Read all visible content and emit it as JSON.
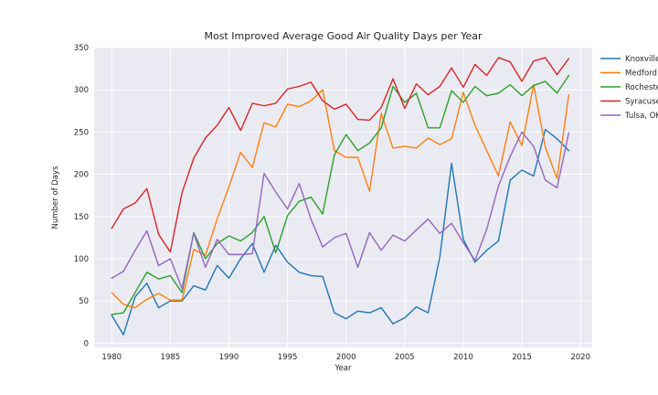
{
  "chart_data": {
    "type": "line",
    "title": "Most Improved Average Good Air Quality Days per Year",
    "xlabel": "Year",
    "ylabel": "Number of Days",
    "xlim": [
      1978.5,
      2021.0
    ],
    "ylim": [
      -5,
      350
    ],
    "xticks": [
      1980,
      1985,
      1990,
      1995,
      2000,
      2005,
      2010,
      2015,
      2020
    ],
    "yticks": [
      0,
      50,
      100,
      150,
      200,
      250,
      300,
      350
    ],
    "grid": true,
    "legend_position": "right",
    "x": [
      1980,
      1981,
      1982,
      1983,
      1984,
      1985,
      1986,
      1987,
      1988,
      1989,
      1990,
      1991,
      1992,
      1993,
      1994,
      1995,
      1996,
      1997,
      1998,
      1999,
      2000,
      2001,
      2002,
      2003,
      2004,
      2005,
      2006,
      2007,
      2008,
      2009,
      2010,
      2011,
      2012,
      2013,
      2014,
      2015,
      2016,
      2017,
      2018,
      2019
    ],
    "series": [
      {
        "name": "Knoxville",
        "color": "#1f77b4",
        "values": [
          33,
          10,
          55,
          71,
          42,
          50,
          50,
          68,
          63,
          92,
          77,
          100,
          118,
          84,
          116,
          96,
          84,
          80,
          79,
          36,
          29,
          38,
          36,
          42,
          23,
          30,
          43,
          36,
          102,
          213,
          123,
          96,
          110,
          121,
          193,
          205,
          198,
          253,
          242,
          228
        ]
      },
      {
        "name": "Medford",
        "color": "#ff7f0e",
        "values": [
          60,
          46,
          42,
          52,
          59,
          51,
          51,
          111,
          104,
          147,
          185,
          226,
          208,
          261,
          256,
          283,
          280,
          287,
          300,
          228,
          220,
          220,
          180,
          272,
          231,
          233,
          231,
          243,
          235,
          242,
          297,
          258,
          228,
          198,
          262,
          234,
          306,
          232,
          195,
          294
        ]
      },
      {
        "name": "Rochester",
        "color": "#2ca02c",
        "values": [
          34,
          36,
          60,
          84,
          76,
          80,
          60,
          131,
          100,
          118,
          127,
          121,
          131,
          150,
          107,
          151,
          168,
          173,
          153,
          223,
          247,
          228,
          237,
          255,
          304,
          285,
          296,
          255,
          255,
          299,
          285,
          304,
          293,
          296,
          306,
          293,
          305,
          310,
          296,
          317
        ]
      },
      {
        "name": "Syracuse",
        "color": "#d62728",
        "values": [
          136,
          159,
          166,
          183,
          129,
          108,
          178,
          219,
          243,
          258,
          279,
          252,
          284,
          281,
          284,
          301,
          304,
          309,
          287,
          277,
          283,
          265,
          264,
          279,
          313,
          278,
          307,
          294,
          304,
          326,
          303,
          330,
          317,
          338,
          333,
          310,
          334,
          338,
          318,
          337
        ]
      },
      {
        "name": "Tulsa, OK",
        "color": "#9467bd",
        "values": [
          77,
          85,
          110,
          133,
          92,
          100,
          65,
          130,
          90,
          123,
          105,
          105,
          106,
          201,
          179,
          159,
          189,
          147,
          114,
          125,
          130,
          90,
          131,
          110,
          128,
          121,
          134,
          147,
          130,
          142,
          119,
          98,
          135,
          186,
          221,
          250,
          233,
          193,
          184,
          249
        ]
      }
    ]
  }
}
